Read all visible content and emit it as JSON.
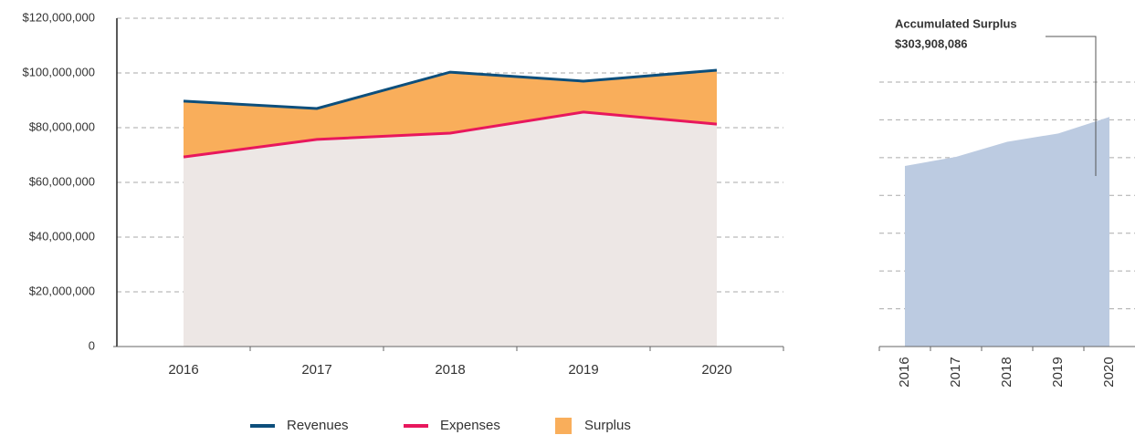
{
  "chart_data": [
    {
      "type": "line",
      "categories": [
        "2016",
        "2017",
        "2018",
        "2019",
        "2020"
      ],
      "series": [
        {
          "name": "Revenues",
          "color": "#0d4f7c",
          "values": [
            89700000,
            87000000,
            100300000,
            97000000,
            101000000
          ]
        },
        {
          "name": "Expenses",
          "color": "#e8175d",
          "values": [
            69300000,
            75700000,
            78000000,
            85700000,
            81300000
          ]
        },
        {
          "name": "Surplus",
          "color": "#f9ae5b",
          "values": [
            20400000,
            11300000,
            22300000,
            11300000,
            19700000
          ],
          "stacked_on": "Expenses"
        }
      ],
      "ylim": [
        0,
        120000000
      ],
      "yticks": [
        0,
        {
          "value": 20000000,
          "label": "$20,000,000"
        },
        {
          "value": 40000000,
          "label": "$40,000,000"
        },
        {
          "value": 60000000,
          "label": "$60,000,000"
        },
        {
          "value": 80000000,
          "label": "$80,000,000"
        },
        {
          "value": 100000000,
          "label": "$100,000,000"
        },
        {
          "value": 120000000,
          "label": "$120,000,000"
        }
      ],
      "grid": true,
      "legend": "bottom"
    },
    {
      "type": "area",
      "annotation": {
        "title": "Accumulated Surplus",
        "value": "$303,908,086"
      },
      "categories": [
        "2016",
        "2017",
        "2018",
        "2019",
        "2020"
      ],
      "values": [
        239000000,
        251000000,
        271000000,
        282000000,
        303908086
      ],
      "color": "#bccbe1",
      "ylim": [
        0,
        350000000
      ],
      "yticks": [
        0,
        50000000,
        100000000,
        150000000,
        200000000,
        250000000,
        300000000,
        350000000
      ],
      "show_ytick_labels": false,
      "grid": true
    }
  ]
}
